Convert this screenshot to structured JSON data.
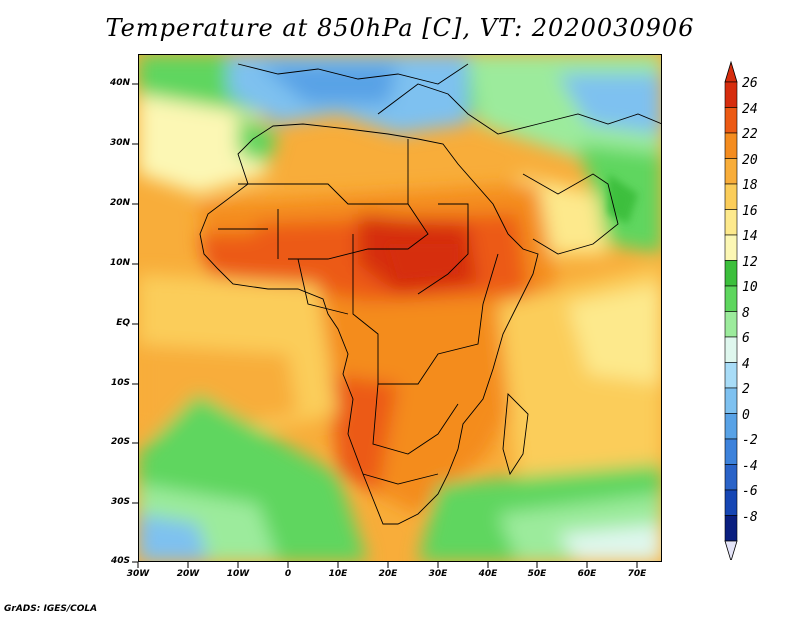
{
  "title": "Temperature at 850hPa [C], VT: 2020030906",
  "footer": "GrADS: IGES/COLA",
  "axes": {
    "lat_ticks": [
      "40N",
      "30N",
      "20N",
      "10N",
      "EQ",
      "10S",
      "20S",
      "30S",
      "40S"
    ],
    "lon_ticks": [
      "30W",
      "20W",
      "10W",
      "0",
      "10E",
      "20E",
      "30E",
      "40E",
      "50E",
      "60E",
      "70E"
    ]
  },
  "colorbar": {
    "labels": [
      "26",
      "24",
      "22",
      "20",
      "18",
      "16",
      "14",
      "12",
      "10",
      "8",
      "6",
      "4",
      "2",
      "0",
      "-2",
      "-4",
      "-6",
      "-8"
    ],
    "colors": [
      "#d62d0e",
      "#ec5a14",
      "#f48c1f",
      "#f8ad3a",
      "#fbcd5a",
      "#fde98c",
      "#fcf7b4",
      "#3cbf3c",
      "#5ed65e",
      "#9ceb9c",
      "#dff7ee",
      "#a8dcf7",
      "#7ec1f0",
      "#58a2e6",
      "#3d82db",
      "#2a63c8",
      "#1646b4",
      "#0a1f80"
    ],
    "top_arrow_color": "#d62d0e",
    "bottom_arrow_color": "#e4e4f8"
  }
}
